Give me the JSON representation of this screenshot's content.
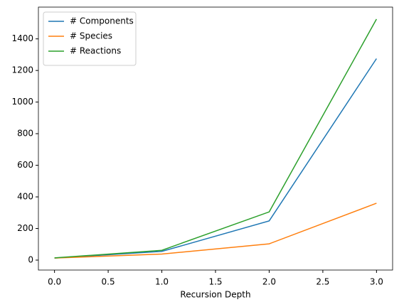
{
  "chart_data": {
    "type": "line",
    "x_label": "Recursion Depth",
    "x": [
      0,
      1,
      2,
      3
    ],
    "series": [
      {
        "name": "# Components",
        "color": "#1f77b4",
        "values": [
          13,
          55,
          248,
          1275
        ]
      },
      {
        "name": "# Species",
        "color": "#ff7f0e",
        "values": [
          13,
          38,
          103,
          360
        ]
      },
      {
        "name": "# Reactions",
        "color": "#2ca02c",
        "values": [
          14,
          62,
          305,
          1525
        ]
      }
    ],
    "xlim": [
      -0.15,
      3.15
    ],
    "xticks": [
      {
        "value": 0,
        "label": "0.0"
      },
      {
        "value": 0.5,
        "label": "0.5"
      },
      {
        "value": 1,
        "label": "1.0"
      },
      {
        "value": 1.5,
        "label": "1.5"
      },
      {
        "value": 2,
        "label": "2.0"
      },
      {
        "value": 2.5,
        "label": "2.5"
      },
      {
        "value": 3,
        "label": "3.0"
      }
    ],
    "ylim": [
      -63,
      1601
    ],
    "yticks": [
      0,
      200,
      400,
      600,
      800,
      1000,
      1200,
      1400
    ],
    "legend": "upper-left",
    "grid": false
  }
}
